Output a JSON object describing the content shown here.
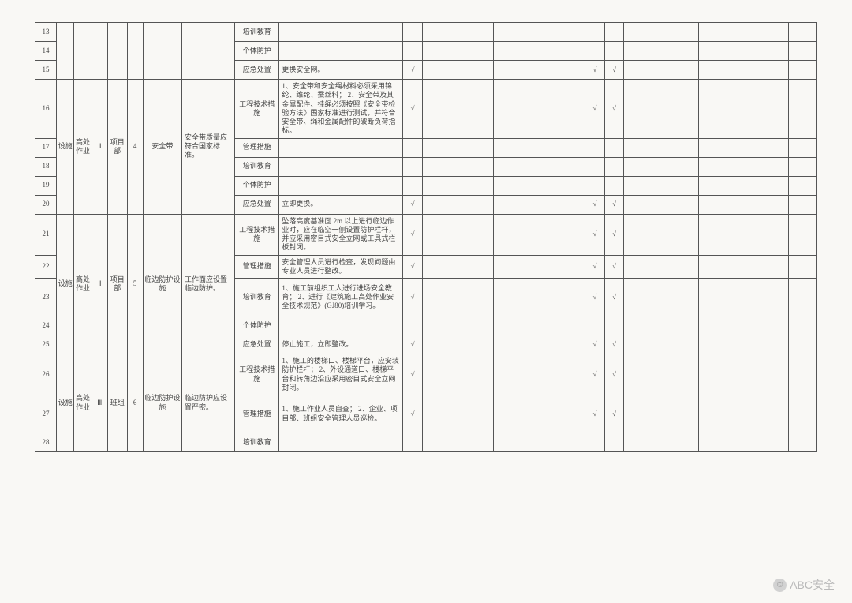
{
  "watermark": {
    "text": "ABC安全",
    "icon": "©"
  },
  "checkmark": "√",
  "cols": {
    "seq": 24,
    "c2": 20,
    "c3": 20,
    "c4": 18,
    "c5": 22,
    "c6": 18,
    "c7": 44,
    "c8": 60,
    "c9": 50,
    "c10": 140,
    "c11": 22,
    "c12": 80,
    "c13": 104,
    "c14": 22,
    "c15": 22,
    "c16": 84,
    "c17": 70,
    "c18": 32,
    "c19": 32
  },
  "groups": [
    {
      "rows": [
        {
          "seq": "13",
          "col9": "培训教育",
          "col10": "",
          "checks": [
            0,
            0,
            0,
            0,
            0
          ]
        },
        {
          "seq": "14",
          "col9": "个体防护",
          "col10": "",
          "checks": [
            0,
            0,
            0,
            0,
            0
          ]
        },
        {
          "seq": "15",
          "col9": "应急处置",
          "col10": "更换安全网。",
          "checks": [
            1,
            0,
            0,
            1,
            1
          ]
        }
      ]
    },
    {
      "merge": {
        "c2": "设施",
        "c3": "高处作业",
        "c4": "Ⅱ",
        "c5": "项目部",
        "c6": "4",
        "c7": "安全带",
        "c8": "安全带质量应符合国家标准。"
      },
      "rows": [
        {
          "seq": "16",
          "col9": "工程技术措施",
          "col10": "1、安全带和安全绳材料必须采用锦纶、维纶、蚕丝料；\n2、安全带及其金属配件、挂绳必须按照《安全带检验方法》国家标准进行测试，并符合安全带、绳和金属配件的破断负荷指标。",
          "checks": [
            1,
            0,
            0,
            1,
            1
          ]
        },
        {
          "seq": "17",
          "col9": "管理措施",
          "col10": "",
          "checks": [
            0,
            0,
            0,
            0,
            0
          ]
        },
        {
          "seq": "18",
          "col9": "培训教育",
          "col10": "",
          "checks": [
            0,
            0,
            0,
            0,
            0
          ]
        },
        {
          "seq": "19",
          "col9": "个体防护",
          "col10": "",
          "checks": [
            0,
            0,
            0,
            0,
            0
          ]
        },
        {
          "seq": "20",
          "col9": "应急处置",
          "col10": "立即更换。",
          "checks": [
            1,
            0,
            0,
            1,
            1
          ]
        }
      ]
    },
    {
      "merge": {
        "c2": "设施",
        "c3": "高处作业",
        "c4": "Ⅱ",
        "c5": "项目部",
        "c6": "5",
        "c7": "临边防护设施",
        "c8": "工作面应设置临边防护。"
      },
      "rows": [
        {
          "seq": "21",
          "col9": "工程技术措施",
          "col10": "坠落高度基准面 2m 以上进行临边作业时，应在临空一侧设置防护栏杆，并应采用密目式安全立网或工具式栏板封闭。",
          "checks": [
            1,
            0,
            0,
            1,
            1
          ]
        },
        {
          "seq": "22",
          "col9": "管理措施",
          "col10": "安全管理人员进行检查，发现问题由专业人员进行整改。",
          "checks": [
            1,
            0,
            0,
            1,
            1
          ]
        },
        {
          "seq": "23",
          "col9": "培训教育",
          "col10": "1、施工前组织工人进行进场安全教育；\n2、进行《建筑施工高处作业安全技术规范》(GJ80)培训学习。",
          "checks": [
            1,
            0,
            0,
            1,
            1
          ]
        },
        {
          "seq": "24",
          "col9": "个体防护",
          "col10": "",
          "checks": [
            0,
            0,
            0,
            0,
            0
          ]
        },
        {
          "seq": "25",
          "col9": "应急处置",
          "col10": "停止施工，立即整改。",
          "checks": [
            1,
            0,
            0,
            1,
            1
          ]
        }
      ]
    },
    {
      "merge": {
        "c2": "设施",
        "c3": "高处作业",
        "c4": "Ⅲ",
        "c5": "班组",
        "c6": "6",
        "c7": "临边防护设施",
        "c8": "临边防护应设置严密。"
      },
      "rows": [
        {
          "seq": "26",
          "col9": "工程技术措施",
          "col10": "1、施工的楼梯口、楼梯平台，应安装防护栏杆；\n2、外设通道口、楼梯平台和转角边沿应采用密目式安全立网封闭。",
          "checks": [
            1,
            0,
            0,
            1,
            1
          ]
        },
        {
          "seq": "27",
          "col9": "管理措施",
          "col10": "1、施工作业人员自查；\n2、企业、项目部、班组安全管理人员巡检。",
          "checks": [
            1,
            0,
            0,
            1,
            1
          ]
        },
        {
          "seq": "28",
          "col9": "培训教育",
          "col10": "",
          "checks": [
            0,
            0,
            0,
            0,
            0
          ]
        }
      ]
    }
  ]
}
